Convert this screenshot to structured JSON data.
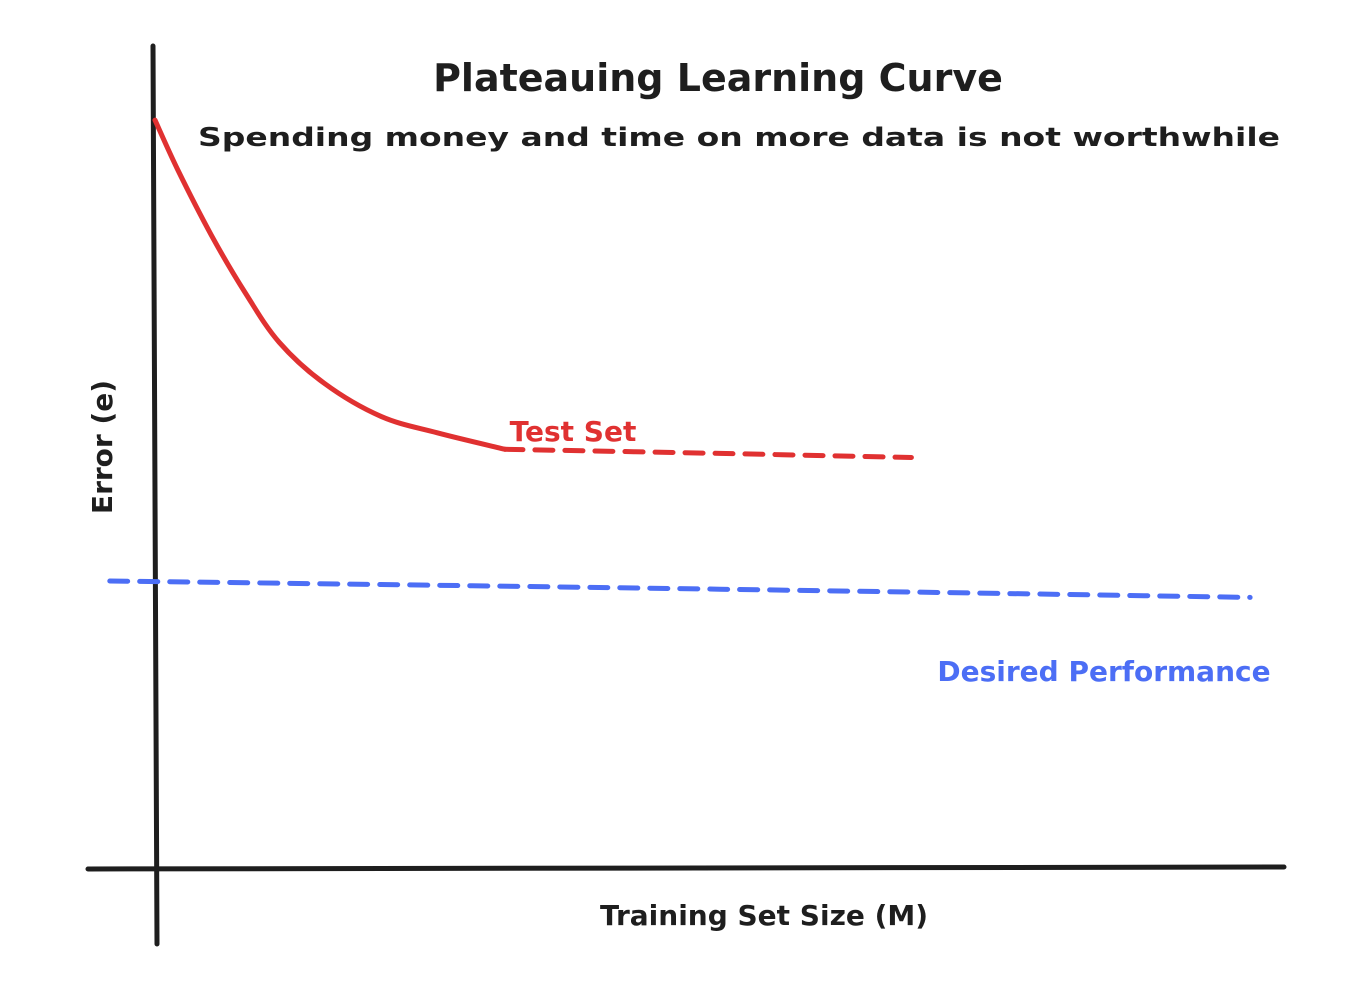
{
  "chart_data": {
    "type": "line",
    "title": "Plateauing Learning Curve",
    "subtitle": "Spending money and time on more data is not worthwhile",
    "xlabel": "Training Set Size (M)",
    "ylabel": "Error (e)",
    "xlim": [
      0,
      1
    ],
    "ylim": [
      0,
      1
    ],
    "grid": false,
    "ticks": false,
    "series": [
      {
        "name": "Test Set",
        "color": "#e03131",
        "style": "solid-then-dashed",
        "solid_points": [
          [
            0.0,
            0.91
          ],
          [
            0.02,
            0.85
          ],
          [
            0.05,
            0.77
          ],
          [
            0.08,
            0.7
          ],
          [
            0.11,
            0.64
          ],
          [
            0.15,
            0.59
          ],
          [
            0.2,
            0.55
          ],
          [
            0.25,
            0.53
          ],
          [
            0.31,
            0.51
          ]
        ],
        "dashed_points": [
          [
            0.31,
            0.51
          ],
          [
            0.5,
            0.505
          ],
          [
            0.67,
            0.5
          ]
        ]
      },
      {
        "name": "Desired Performance",
        "color": "#4c6ef5",
        "style": "dashed",
        "points": [
          [
            -0.04,
            0.35
          ],
          [
            0.5,
            0.34
          ],
          [
            0.97,
            0.33
          ]
        ]
      }
    ],
    "annotations": [
      "Test Set",
      "Desired Performance"
    ],
    "colors": {
      "axis": "#1e1e1e",
      "text": "#1e1e1e",
      "test": "#e03131",
      "desired": "#4c6ef5"
    }
  }
}
